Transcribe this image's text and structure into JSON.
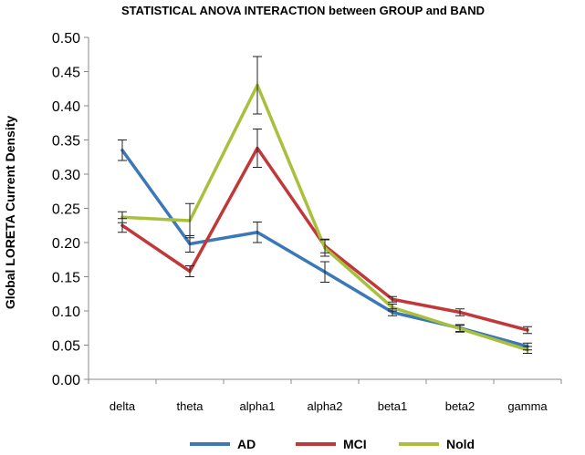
{
  "chart_data": {
    "type": "line",
    "title": "STATISTICAL ANOVA INTERACTION between GROUP and BAND",
    "ylabel": "Global LORETA Current Density",
    "xlabel": "",
    "ylim": [
      0,
      0.5
    ],
    "yticks": [
      "0.00",
      "0.05",
      "0.10",
      "0.15",
      "0.20",
      "0.25",
      "0.30",
      "0.35",
      "0.40",
      "0.45",
      "0.50"
    ],
    "categories": [
      "delta",
      "theta",
      "alpha1",
      "alpha2",
      "beta1",
      "beta2",
      "gamma"
    ],
    "grid": false,
    "legend_position": "bottom",
    "series": [
      {
        "name": "AD",
        "color": "#3a78b8",
        "values": [
          0.335,
          0.198,
          0.215,
          0.157,
          0.098,
          0.075,
          0.048
        ],
        "errors": [
          0.015,
          0.012,
          0.015,
          0.015,
          0.005,
          0.005,
          0.005
        ]
      },
      {
        "name": "MCI",
        "color": "#c0383a",
        "values": [
          0.225,
          0.158,
          0.338,
          0.195,
          0.117,
          0.098,
          0.072
        ],
        "errors": [
          0.01,
          0.008,
          0.028,
          0.01,
          0.004,
          0.005,
          0.005
        ]
      },
      {
        "name": "Nold",
        "color": "#a8c03c",
        "values": [
          0.237,
          0.232,
          0.43,
          0.192,
          0.105,
          0.074,
          0.043
        ],
        "errors": [
          0.008,
          0.025,
          0.042,
          0.012,
          0.005,
          0.005,
          0.005
        ]
      }
    ]
  }
}
